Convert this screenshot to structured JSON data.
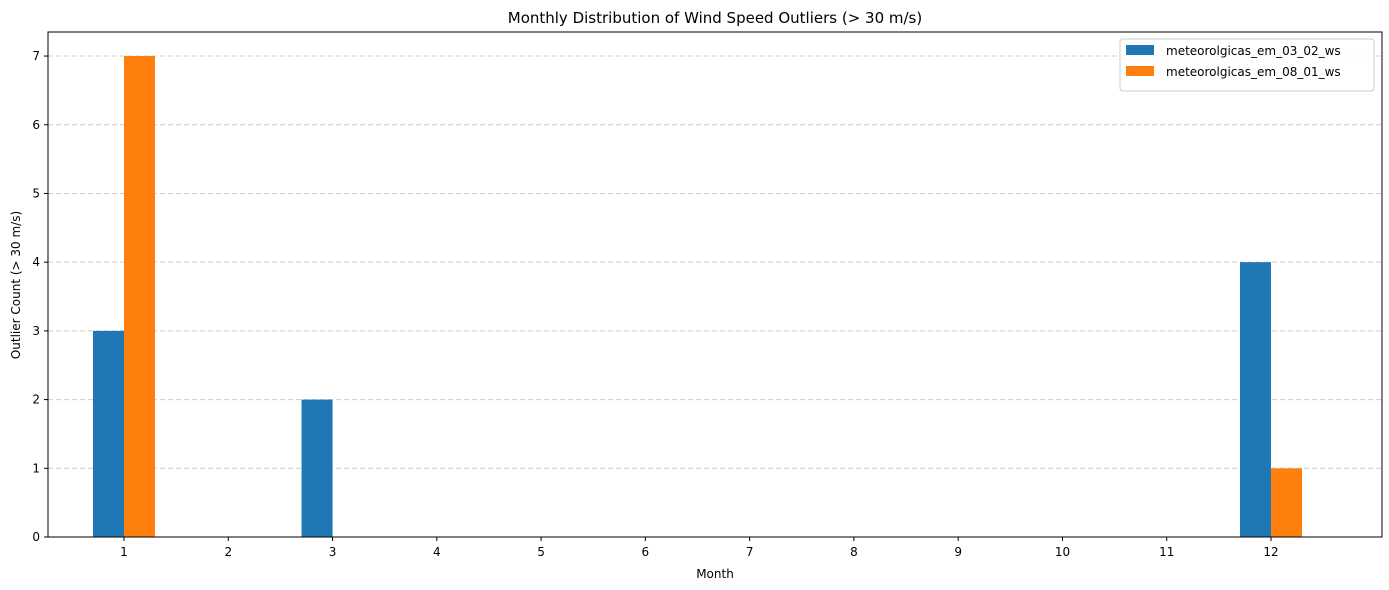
{
  "chart_data": {
    "type": "bar",
    "title": "Monthly Distribution of Wind Speed Outliers (> 30 m/s)",
    "xlabel": "Month",
    "ylabel": "Outlier Count (> 30 m/s)",
    "categories": [
      "1",
      "2",
      "3",
      "4",
      "5",
      "6",
      "7",
      "8",
      "9",
      "10",
      "11",
      "12"
    ],
    "yticks": [
      "0",
      "1",
      "2",
      "3",
      "4",
      "5",
      "6",
      "7"
    ],
    "ylim": [
      0,
      7.35
    ],
    "grid": "y-dashed",
    "legend_position": "top-right",
    "series": [
      {
        "name": "meteorolgicas_em_03_02_ws",
        "color": "#1f77b4",
        "values": [
          3,
          0,
          2,
          0,
          0,
          0,
          0,
          0,
          0,
          0,
          0,
          4
        ]
      },
      {
        "name": "meteorolgicas_em_08_01_ws",
        "color": "#ff7f0e",
        "values": [
          7,
          0,
          0,
          0,
          0,
          0,
          0,
          0,
          0,
          0,
          0,
          1
        ]
      }
    ]
  }
}
